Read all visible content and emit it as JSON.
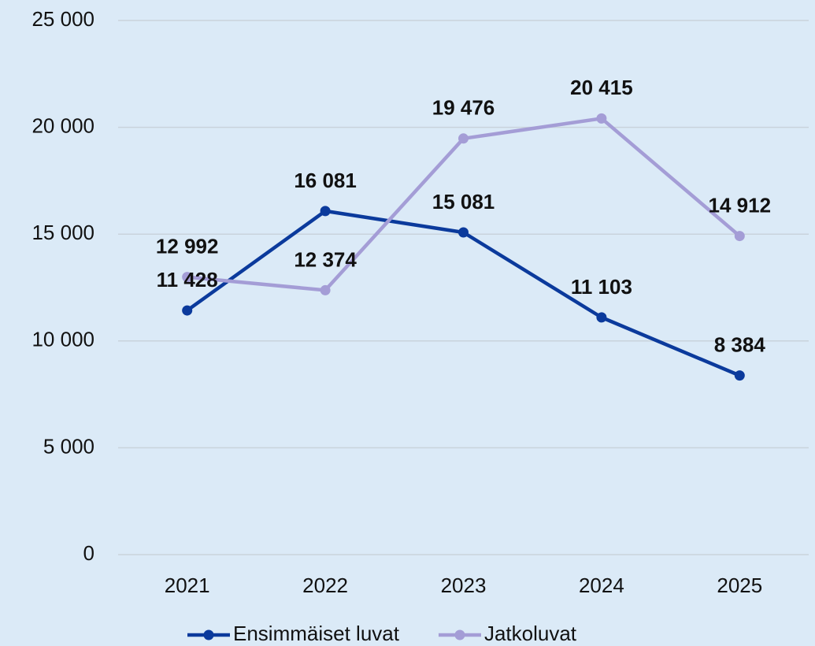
{
  "chart_data": {
    "type": "line",
    "categories": [
      "2021",
      "2022",
      "2023",
      "2024",
      "2025"
    ],
    "series": [
      {
        "name": "Ensimmäiset luvat",
        "color": "#0b3a9c",
        "values": [
          11428,
          16081,
          15081,
          11103,
          8384
        ],
        "value_labels": [
          "11 428",
          "16 081",
          "15 081",
          "11 103",
          "8 384"
        ]
      },
      {
        "name": "Jatkoluvat",
        "color": "#a49dd6",
        "values": [
          12992,
          12374,
          19476,
          20415,
          14912
        ],
        "value_labels": [
          "12 992",
          "12 374",
          "19 476",
          "20 415",
          "14 912"
        ]
      }
    ],
    "ylim": [
      0,
      25000
    ],
    "yticks": [
      {
        "value": 0,
        "label": "0"
      },
      {
        "value": 5000,
        "label": "5 000"
      },
      {
        "value": 10000,
        "label": "10 000"
      },
      {
        "value": 15000,
        "label": "15 000"
      },
      {
        "value": 20000,
        "label": "20 000"
      },
      {
        "value": 25000,
        "label": "25 000"
      }
    ],
    "grid": true,
    "legend": "bottom"
  }
}
